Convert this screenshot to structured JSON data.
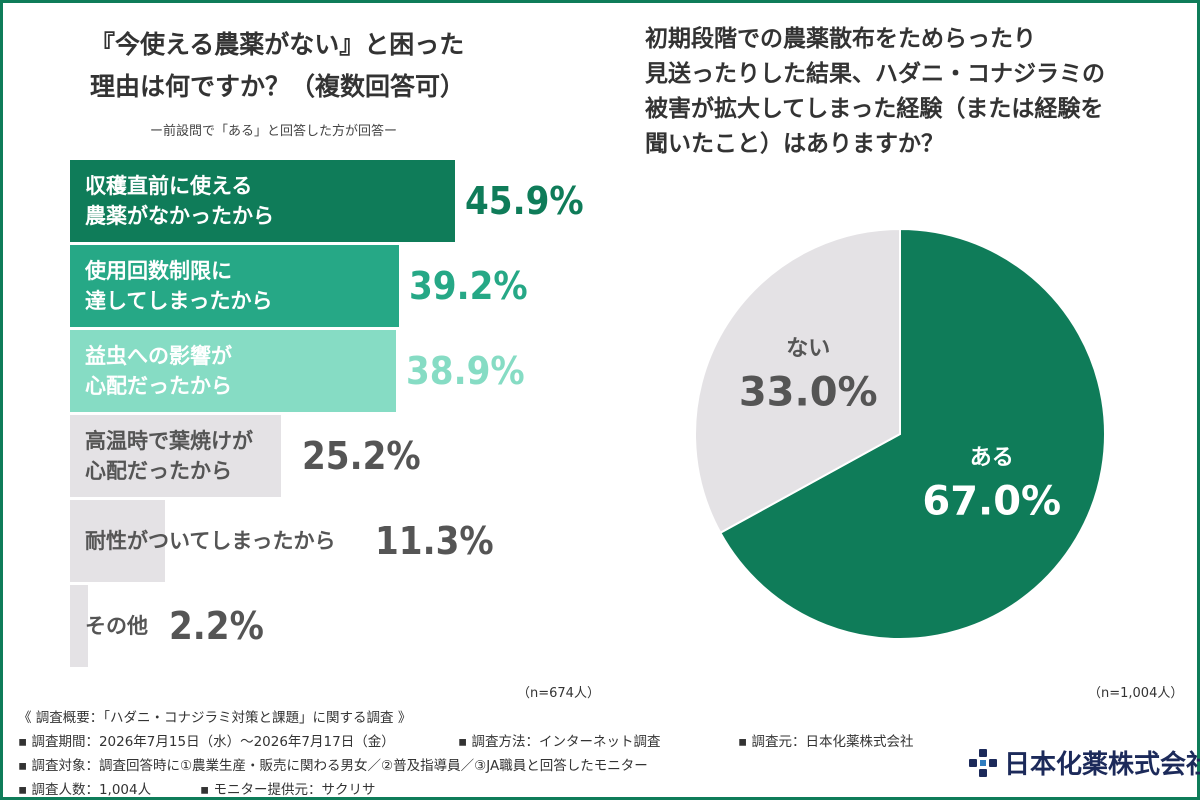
{
  "left_title": {
    "line1": "『今使える農薬がない』と困った",
    "line2": "理由は何ですか？（複数回答可）"
  },
  "left_subnote": "ー前設問で「ある」と回答した方が回答ー",
  "right_title": {
    "line1": "初期段階での農薬散布をためらったり",
    "line2": "見送ったりした結果、ハダニ・コナジラミの",
    "line3": "被害が拡大してしまった経験（または経験を",
    "line4": "聞いたこと）はありますか？"
  },
  "colors": {
    "frame": "#0f7c59",
    "dark_green": "#0f7c59",
    "mid_green": "#26a886",
    "light_green": "#86dcc4",
    "gray": "#e4e2e5",
    "text_gray": "#555555",
    "pie_green": "#0f7c59",
    "pie_gray": "#e4e2e5"
  },
  "chart_data": [
    {
      "type": "bar",
      "orientation": "horizontal",
      "categories": [
        "収穫直前に使える農薬がなかったから",
        "使用回数制限に達してしまったから",
        "益虫への影響が心配だったから",
        "高温時で葉焼けが心配だったから",
        "耐性がついてしまったから",
        "その他"
      ],
      "label_lines": [
        [
          "収穫直前に使える",
          "農薬がなかったから"
        ],
        [
          "使用回数制限に",
          "達してしまったから"
        ],
        [
          "益虫への影響が",
          "心配だったから"
        ],
        [
          "高温時で葉焼けが",
          "心配だったから"
        ],
        [
          "耐性がついてしまったから"
        ],
        [
          "その他"
        ]
      ],
      "values": [
        45.9,
        39.2,
        38.9,
        25.2,
        11.3,
        2.2
      ],
      "value_labels": [
        "45.9%",
        "39.2%",
        "38.9%",
        "25.2%",
        "11.3%",
        "2.2%"
      ],
      "unit": "%",
      "xlim": [
        0,
        100
      ],
      "n_label": "（n=674人）"
    },
    {
      "type": "pie",
      "slices": [
        {
          "label": "ある",
          "value": 67.0,
          "value_label": "67.0%"
        },
        {
          "label": "ない",
          "value": 33.0,
          "value_label": "33.0%"
        }
      ],
      "n_label": "（n=1,004人）"
    }
  ],
  "footer": {
    "overview": "《 調査概要：「ハダニ・コナジラミ対策と課題」に関する調査 》",
    "period": "▪ 調査期間：2026年7月15日（水）〜2026年7月17日（金）",
    "method": "▪ 調査方法：インターネット調査",
    "source": "▪ 調査元：日本化薬株式会社",
    "target": "▪ 調査対象：調査回答時に①農業生産・販売に関わる男女／②普及指導員／③JA職員と回答したモニター",
    "count": "▪ 調査人数：1,004人",
    "monitor": "▪ モニター提供元：サクリサ"
  },
  "logo": {
    "text": "日本化薬株式会社",
    "icon": "nippon-kayaku-logo-icon"
  }
}
